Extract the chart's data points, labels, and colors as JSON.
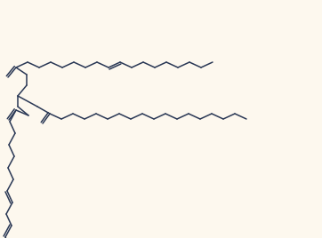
{
  "bg_color": "#fdf8ee",
  "line_color": "#2a3855",
  "line_width": 1.1,
  "figsize": [
    3.62,
    2.68
  ],
  "dpi": 100
}
